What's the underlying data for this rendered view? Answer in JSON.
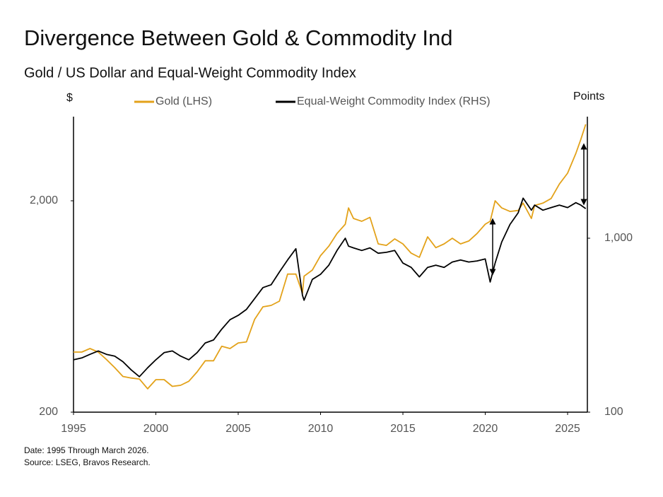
{
  "chart_data": {
    "type": "line",
    "title": "Divergence Between Gold & Commodity Ind",
    "subtitle": "Gold / US Dollar and Equal-Weight Commodity Index",
    "y_label": "$",
    "y2_label": "Points",
    "log_scale": true,
    "grid": false,
    "legend_position": "top",
    "xlim": [
      1995,
      2026.2
    ],
    "xticks": [
      1995,
      2000,
      2005,
      2010,
      2015,
      2020,
      2025
    ],
    "ylim": [
      200,
      5000
    ],
    "yticks": [
      200,
      {
        "value": 2000,
        "label": "2,000"
      }
    ],
    "y2lim": [
      100,
      5000
    ],
    "y2ticks": [
      100,
      {
        "value": 1000,
        "label": "1,000"
      }
    ],
    "x": [
      1995,
      1995.5,
      1996,
      1996.5,
      1997,
      1997.5,
      1998,
      1998.5,
      1999,
      1999.5,
      2000,
      2000.5,
      2001,
      2001.5,
      2002,
      2002.5,
      2003,
      2003.5,
      2004,
      2004.5,
      2005,
      2005.5,
      2006,
      2006.5,
      2007,
      2007.5,
      2008,
      2008.5,
      2008.9,
      2009,
      2009.5,
      2010,
      2010.5,
      2011,
      2011.5,
      2011.7,
      2012,
      2012.5,
      2013,
      2013.5,
      2014,
      2014.5,
      2015,
      2015.5,
      2016,
      2016.5,
      2017,
      2017.5,
      2018,
      2018.5,
      2019,
      2019.5,
      2020,
      2020.3,
      2020.6,
      2021,
      2021.5,
      2022,
      2022.3,
      2022.8,
      2023,
      2023.5,
      2024,
      2024.5,
      2025,
      2025.5,
      2025.8,
      2026.1
    ],
    "series": [
      {
        "name": "Gold (LHS)",
        "color": "#e3a21a",
        "values": [
          385,
          385,
          400,
          385,
          355,
          325,
          295,
          290,
          287,
          258,
          285,
          285,
          265,
          268,
          280,
          310,
          350,
          350,
          410,
          400,
          425,
          430,
          550,
          630,
          640,
          670,
          900,
          900,
          730,
          880,
          940,
          1100,
          1220,
          1400,
          1550,
          1850,
          1650,
          1600,
          1670,
          1250,
          1230,
          1320,
          1250,
          1130,
          1080,
          1350,
          1200,
          1250,
          1330,
          1250,
          1290,
          1400,
          1550,
          1600,
          2000,
          1850,
          1780,
          1800,
          1950,
          1650,
          1900,
          1950,
          2050,
          2400,
          2700,
          3350,
          3900,
          4600
        ]
      },
      {
        "name": "Equal-Weight Commodity Index (RHS)",
        "color": "#000000",
        "axis": "y2",
        "values": [
          200,
          205,
          215,
          225,
          215,
          210,
          195,
          175,
          160,
          180,
          200,
          220,
          225,
          210,
          200,
          220,
          250,
          260,
          300,
          340,
          360,
          390,
          450,
          520,
          540,
          640,
          750,
          870,
          470,
          440,
          580,
          620,
          700,
          850,
          1000,
          900,
          880,
          850,
          880,
          820,
          830,
          850,
          720,
          680,
          600,
          680,
          700,
          680,
          730,
          750,
          730,
          740,
          760,
          560,
          720,
          950,
          1200,
          1400,
          1700,
          1450,
          1550,
          1450,
          1500,
          1550,
          1500,
          1600,
          1550,
          1480
        ]
      }
    ],
    "notes": [
      "Date: 1995 Through March 2026.",
      "Source: LSEG, Bravos Research."
    ]
  }
}
